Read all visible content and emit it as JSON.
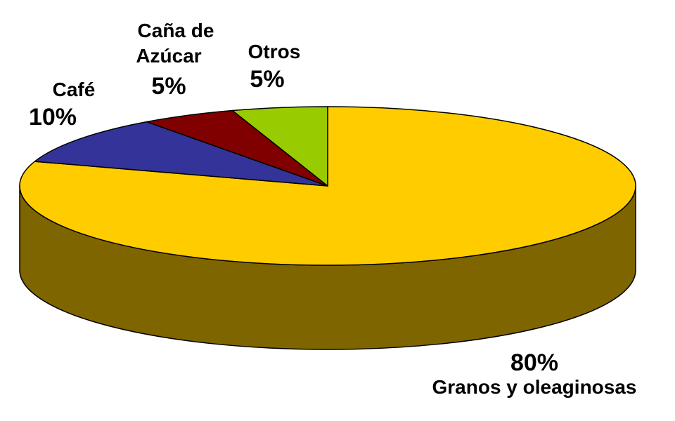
{
  "chart_data": {
    "type": "pie",
    "style": "3d",
    "slices": [
      {
        "label": "Granos y oleaginosas",
        "value": 80,
        "value_label": "80%",
        "color": "#FFCC00",
        "side_color": "#7F6500"
      },
      {
        "label": "Café",
        "value": 10,
        "value_label": "10%",
        "color": "#333399"
      },
      {
        "label": "Caña de Azúcar",
        "label_lines": [
          "Caña de",
          "Azúcar"
        ],
        "value": 5,
        "value_label": "5%",
        "color": "#800000"
      },
      {
        "label": "Otros",
        "value": 5,
        "value_label": "5%",
        "color": "#99CC00"
      }
    ]
  }
}
